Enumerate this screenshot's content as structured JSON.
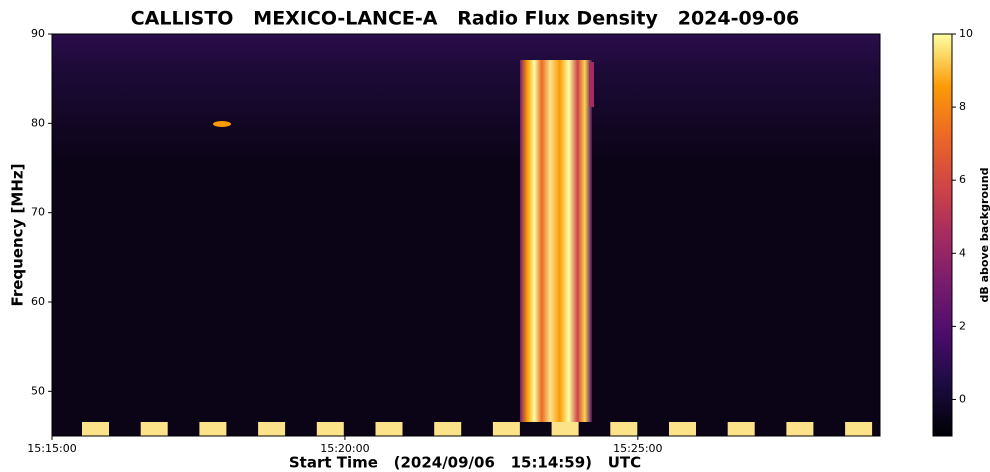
{
  "chart_data": {
    "type": "spectrogram",
    "title": "CALLISTO   MEXICO-LANCE-A   Radio Flux Density   2024-09-06",
    "x_label": "Start Time   (2024/09/06   15:14:59)   UTC",
    "y_label": "Frequency [MHz]",
    "colorbar_label": "dB above background",
    "colormap": "inferno",
    "xlim": [
      "15:15:00",
      "15:29:08"
    ],
    "xticks": [
      "15:15:00",
      "15:20:00",
      "15:25:00"
    ],
    "ylim": [
      45,
      90
    ],
    "yticks": [
      50,
      60,
      70,
      80,
      90
    ],
    "clim": [
      -1,
      10
    ],
    "cticks": [
      0,
      2,
      4,
      6,
      8,
      10
    ]
  }
}
